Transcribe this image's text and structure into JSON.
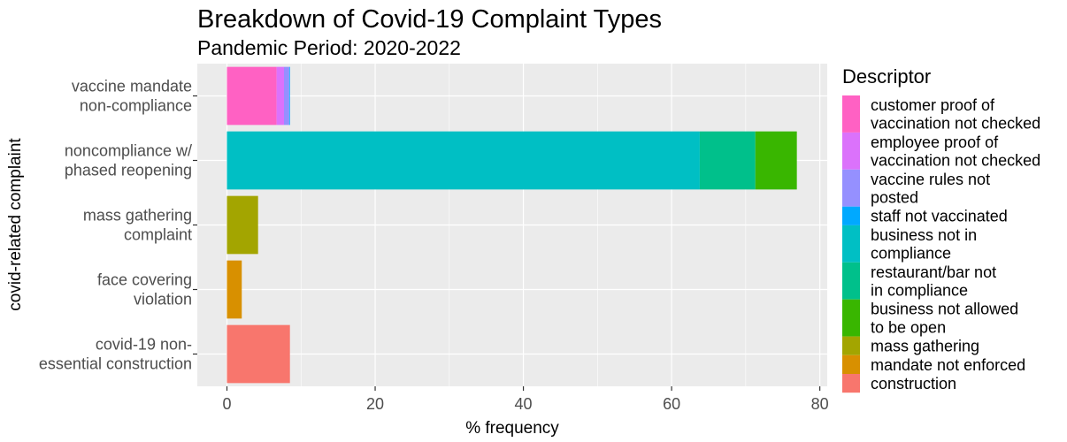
{
  "chart_data": {
    "type": "bar",
    "orientation": "horizontal",
    "stacked": true,
    "title": "Breakdown of Covid-19 Complaint Types",
    "subtitle": "Pandemic Period: 2020-2022",
    "xlabel": "% frequency",
    "ylabel": "covid-related complaint",
    "xlim": [
      -4,
      81
    ],
    "xticks": [
      0,
      20,
      40,
      60,
      80
    ],
    "grid": true,
    "legend_position": "right",
    "legend_title": "Descriptor",
    "categories": [
      [
        "vaccine mandate",
        "non-compliance"
      ],
      [
        "noncompliance w/",
        "phased reopening"
      ],
      [
        "mass gathering",
        "complaint"
      ],
      [
        "face covering",
        "violation"
      ],
      [
        "covid-19 non-",
        "essential construction"
      ]
    ],
    "series": [
      {
        "name": [
          "customer proof of",
          "vaccination not checked"
        ],
        "color": "#FF61C3",
        "values": [
          6.7,
          0,
          0,
          0,
          0
        ]
      },
      {
        "name": [
          "employee proof of",
          "vaccination not checked"
        ],
        "color": "#DB72FB",
        "values": [
          1.0,
          0,
          0,
          0,
          0
        ]
      },
      {
        "name": [
          "vaccine rules not",
          "posted"
        ],
        "color": "#9590FF",
        "values": [
          0.7,
          0,
          0,
          0,
          0
        ]
      },
      {
        "name": [
          "staff not vaccinated"
        ],
        "color": "#00A9FF",
        "values": [
          0.1,
          0,
          0,
          0,
          0
        ]
      },
      {
        "name": [
          "business not in",
          "compliance"
        ],
        "color": "#00BFC4",
        "values": [
          0,
          63.8,
          0,
          0,
          0
        ]
      },
      {
        "name": [
          "restaurant/bar not",
          "in compliance"
        ],
        "color": "#00C08B",
        "values": [
          0,
          7.5,
          0,
          0,
          0
        ]
      },
      {
        "name": [
          "business not allowed",
          "to be open"
        ],
        "color": "#39B600",
        "values": [
          0,
          5.6,
          0,
          0,
          0
        ]
      },
      {
        "name": [
          "mass gathering"
        ],
        "color": "#A3A500",
        "values": [
          0,
          0,
          4.2,
          0,
          0
        ]
      },
      {
        "name": [
          "mandate not enforced"
        ],
        "color": "#D89000",
        "values": [
          0,
          0,
          0,
          2.0,
          0
        ]
      },
      {
        "name": [
          "construction"
        ],
        "color": "#F8766D",
        "values": [
          0,
          0,
          0,
          0,
          8.5
        ]
      }
    ]
  }
}
